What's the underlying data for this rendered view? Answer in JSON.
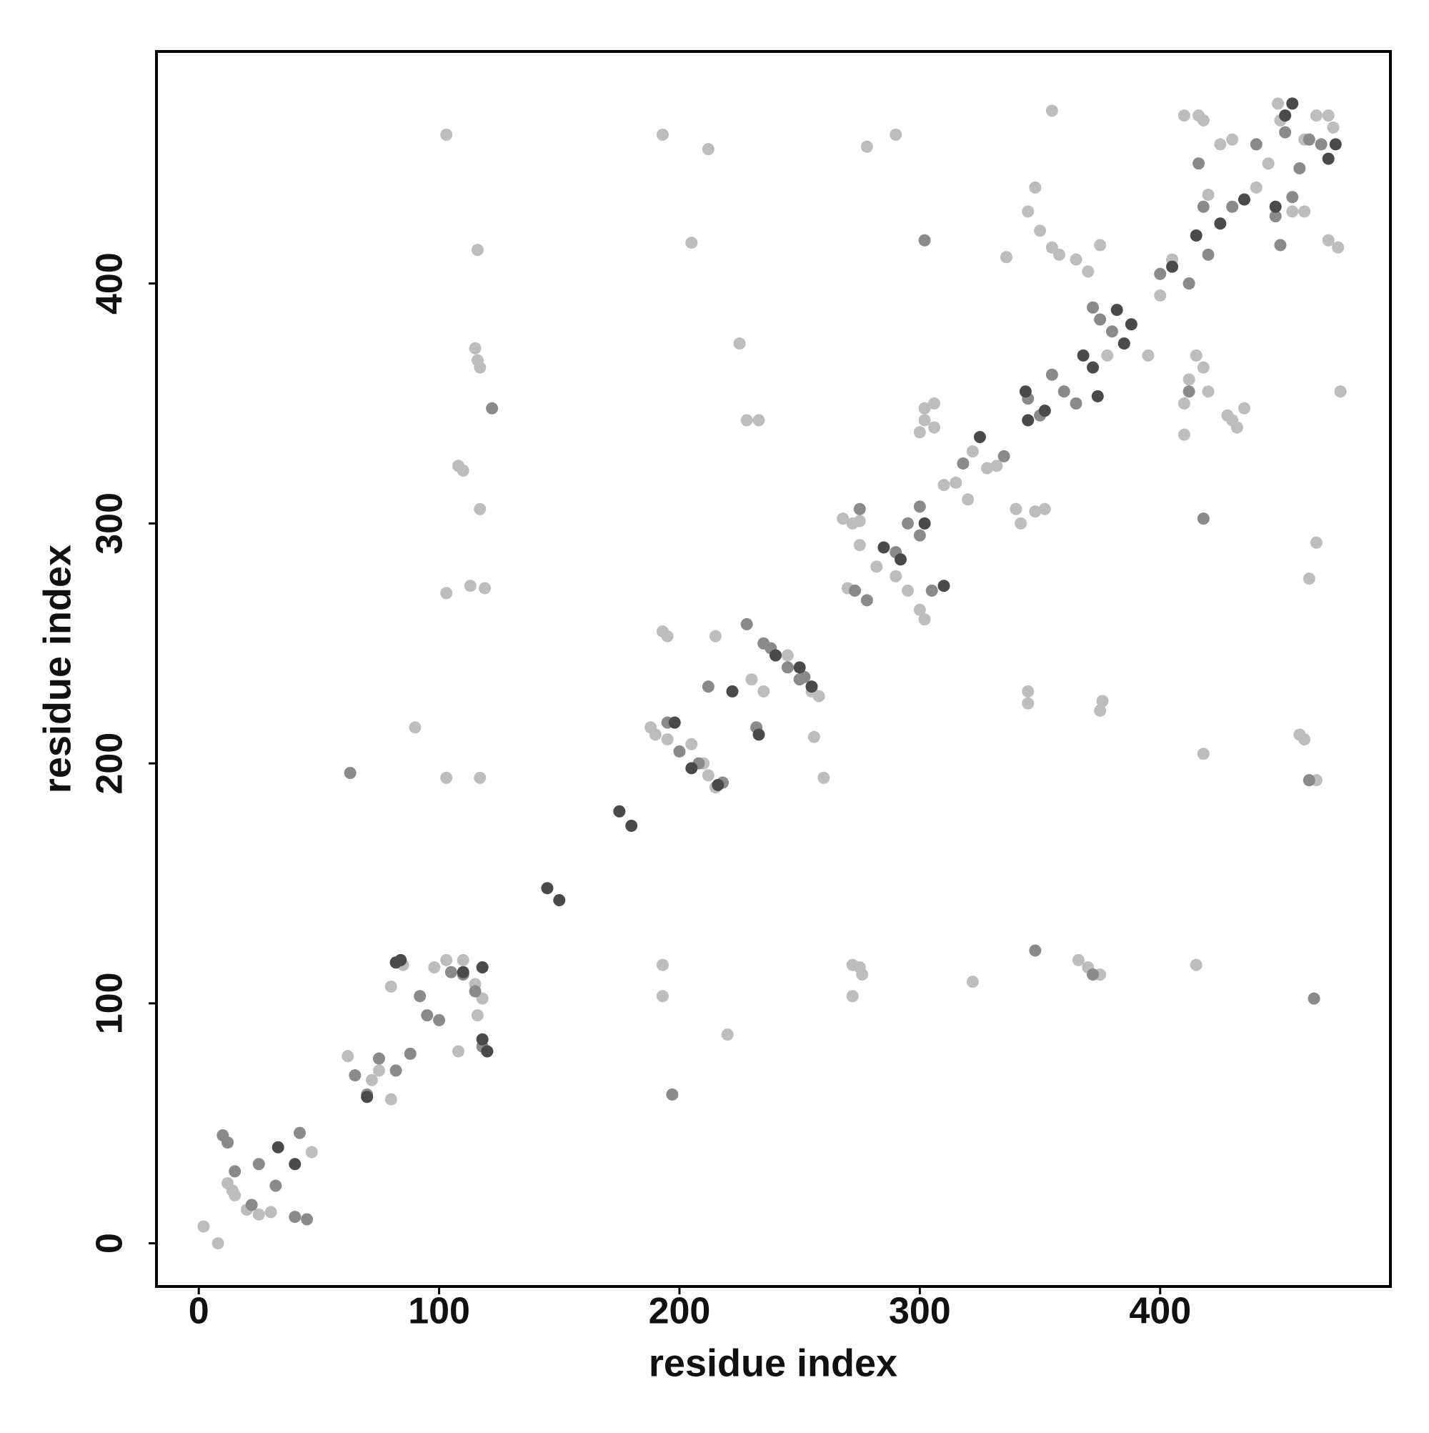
{
  "chart_data": {
    "type": "scatter",
    "x_label": "residue index",
    "y_label": "residue index",
    "xlim": [
      -17.6,
      495.8
    ],
    "ylim": [
      -18,
      496.7
    ],
    "xticks": [
      0,
      100,
      200,
      300,
      400
    ],
    "yticks": [
      0,
      100,
      200,
      300,
      400
    ],
    "grid": false,
    "series": [
      {
        "color": "#bdbdbd",
        "x": [
          2,
          8,
          12,
          14,
          15,
          20,
          25,
          30,
          47,
          62,
          72,
          75,
          80,
          80,
          85,
          90,
          98,
          103,
          110,
          115,
          118,
          116,
          108,
          103,
          103,
          103,
          108,
          110,
          113,
          115,
          116,
          117,
          119,
          116,
          117,
          117,
          193,
          193,
          195,
          193,
          193,
          188,
          190,
          195,
          205,
          205,
          210,
          212,
          215,
          212,
          215,
          220,
          225,
          228,
          233,
          230,
          235,
          245,
          255,
          258,
          256,
          260,
          268,
          272,
          275,
          270,
          275,
          282,
          290,
          295,
          300,
          302,
          302,
          306,
          302,
          300,
          306,
          310,
          315,
          320,
          322,
          328,
          332,
          278,
          290,
          272,
          275,
          276,
          272,
          322,
          336,
          340,
          342,
          345,
          345,
          345,
          348,
          350,
          348,
          352,
          355,
          355,
          358,
          365,
          370,
          375,
          366,
          370,
          375,
          375,
          376,
          378,
          385,
          395,
          400,
          405,
          410,
          412,
          415,
          418,
          420,
          410,
          415,
          418,
          420,
          410,
          416,
          418,
          428,
          430,
          432,
          435,
          440,
          445,
          450,
          460,
          465,
          470,
          472,
          470,
          474,
          475,
          455,
          460,
          462,
          465,
          465,
          449,
          458,
          460,
          425,
          430
        ],
        "values": [
          7,
          0,
          25,
          22,
          20,
          14,
          12,
          13,
          38,
          78,
          68,
          72,
          60,
          107,
          116,
          215,
          115,
          118,
          118,
          108,
          102,
          95,
          80,
          462,
          271,
          194,
          324,
          322,
          274,
          373,
          368,
          365,
          273,
          414,
          306,
          194,
          462,
          255,
          253,
          116,
          103,
          215,
          212,
          210,
          208,
          417,
          200,
          195,
          190,
          456,
          253,
          87,
          375,
          343,
          343,
          235,
          230,
          245,
          230,
          228,
          211,
          194,
          302,
          300,
          301,
          273,
          291,
          282,
          278,
          272,
          264,
          260,
          348,
          350,
          343,
          338,
          340,
          316,
          317,
          310,
          330,
          323,
          324,
          457,
          462,
          116,
          115,
          112,
          103,
          109,
          411,
          306,
          300,
          230,
          225,
          430,
          440,
          422,
          305,
          306,
          472,
          415,
          412,
          410,
          405,
          416,
          118,
          115,
          112,
          222,
          226,
          370,
          375,
          370,
          395,
          410,
          350,
          360,
          370,
          365,
          355,
          337,
          116,
          204,
          437,
          470,
          470,
          468,
          345,
          343,
          340,
          348,
          440,
          450,
          468,
          460,
          470,
          470,
          465,
          418,
          415,
          355,
          430,
          430,
          277,
          292,
          193,
          475,
          212,
          210,
          458,
          460
        ]
      },
      {
        "color": "#8a8a8a",
        "x": [
          10,
          12,
          15,
          22,
          25,
          32,
          40,
          45,
          42,
          63,
          65,
          70,
          75,
          82,
          88,
          92,
          95,
          100,
          105,
          110,
          115,
          118,
          122,
          197,
          195,
          200,
          208,
          212,
          218,
          228,
          232,
          238,
          252,
          275,
          273,
          278,
          290,
          295,
          300,
          305,
          300,
          318,
          335,
          345,
          350,
          348,
          355,
          360,
          365,
          372,
          375,
          372,
          380,
          400,
          412,
          416,
          418,
          420,
          430,
          440,
          448,
          452,
          462,
          467,
          450,
          464,
          462,
          418,
          412,
          455,
          458,
          302,
          245,
          250,
          235
        ],
        "values": [
          45,
          42,
          30,
          16,
          33,
          24,
          11,
          10,
          46,
          196,
          70,
          62,
          77,
          72,
          79,
          103,
          95,
          93,
          113,
          112,
          105,
          82,
          348,
          62,
          217,
          205,
          200,
          232,
          192,
          258,
          215,
          248,
          236,
          306,
          272,
          268,
          288,
          300,
          295,
          272,
          307,
          325,
          328,
          352,
          345,
          122,
          362,
          355,
          350,
          390,
          385,
          112,
          380,
          404,
          400,
          450,
          432,
          412,
          432,
          458,
          428,
          463,
          460,
          458,
          416,
          102,
          193,
          302,
          355,
          436,
          448,
          418,
          240,
          235,
          250
        ]
      },
      {
        "color": "#4a4a4a",
        "x": [
          33,
          40,
          70,
          82,
          84,
          110,
          118,
          120,
          118,
          175,
          180,
          145,
          150,
          198,
          205,
          216,
          222,
          233,
          240,
          250,
          255,
          285,
          292,
          302,
          310,
          345,
          352,
          368,
          372,
          374,
          385,
          388,
          382,
          405,
          415,
          425,
          435,
          448,
          452,
          455,
          470,
          473,
          325,
          344
        ],
        "values": [
          40,
          33,
          61,
          117,
          118,
          113,
          115,
          80,
          85,
          180,
          174,
          148,
          143,
          217,
          198,
          191,
          230,
          212,
          245,
          240,
          232,
          290,
          285,
          300,
          274,
          343,
          347,
          370,
          365,
          353,
          375,
          383,
          389,
          407,
          420,
          425,
          435,
          432,
          470,
          475,
          452,
          458,
          336,
          355
        ]
      }
    ]
  }
}
